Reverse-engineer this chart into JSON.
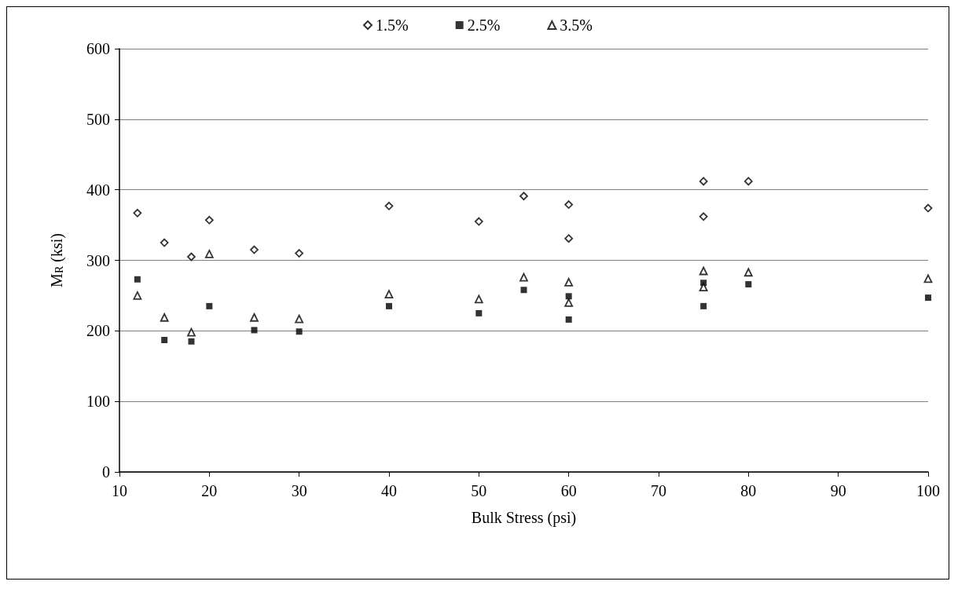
{
  "chart_data": {
    "type": "scatter",
    "xlabel": "Bulk Stress (psi)",
    "ylabel": "M$_{R}$ (ksi)",
    "xlim": [
      10,
      100
    ],
    "xticks": [
      10,
      20,
      30,
      40,
      50,
      60,
      70,
      80,
      90,
      100
    ],
    "ylim": [
      0,
      600
    ],
    "yticks": [
      0,
      100,
      200,
      300,
      400,
      500,
      600
    ],
    "grid": "y",
    "legend": "top",
    "series": [
      {
        "name": "1.5%",
        "color": "#000000",
        "marker": "diamond",
        "x": [
          12,
          15,
          18,
          20,
          25,
          30,
          40,
          50,
          55,
          60,
          60,
          75,
          75,
          80,
          100
        ],
        "values": [
          367,
          325,
          305,
          357,
          315,
          310,
          377,
          355,
          391,
          379,
          331,
          412,
          362,
          412,
          374
        ]
      },
      {
        "name": "2.5%",
        "color": "#000000",
        "marker": "square",
        "x": [
          12,
          15,
          18,
          20,
          25,
          30,
          40,
          50,
          55,
          60,
          60,
          75,
          75,
          80,
          100
        ],
        "values": [
          273,
          187,
          185,
          235,
          201,
          199,
          235,
          225,
          258,
          249,
          216,
          268,
          235,
          266,
          247
        ]
      },
      {
        "name": "3.5%",
        "color": "#000000",
        "marker": "triangle",
        "x": [
          12,
          15,
          18,
          20,
          25,
          30,
          40,
          50,
          55,
          60,
          60,
          75,
          75,
          80,
          100
        ],
        "values": [
          250,
          219,
          198,
          309,
          219,
          217,
          252,
          245,
          276,
          269,
          240,
          285,
          262,
          283,
          274
        ]
      }
    ]
  }
}
